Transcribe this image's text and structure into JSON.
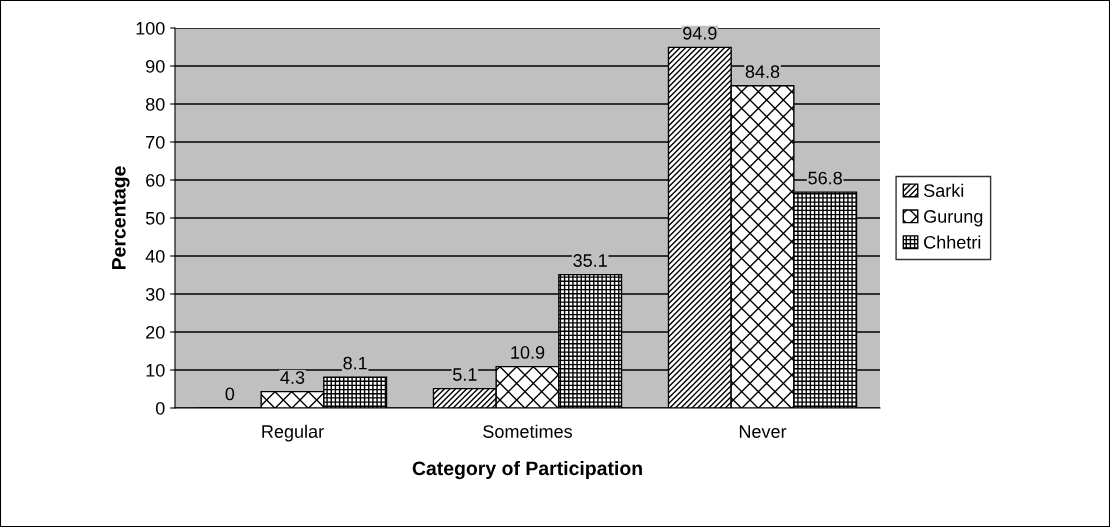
{
  "chart_data": {
    "type": "bar",
    "xlabel": "Category of Participation",
    "ylabel": "Percentage",
    "categories": [
      "Regular",
      "Sometimes",
      "Never"
    ],
    "series": [
      {
        "name": "Sarki",
        "color": "#000000",
        "values": [
          0,
          5.1,
          94.9
        ]
      },
      {
        "name": "Gurung",
        "color": "#000000",
        "values": [
          4.3,
          10.9,
          84.8
        ]
      },
      {
        "name": "Chhetri",
        "color": "#000000",
        "values": [
          8.1,
          35.1,
          56.8
        ]
      }
    ],
    "ylim": [
      0,
      100
    ],
    "yticks": [
      0,
      10,
      20,
      30,
      40,
      50,
      60,
      70,
      80,
      90,
      100
    ],
    "grid": "y",
    "legend": "right",
    "data_labels": true
  }
}
